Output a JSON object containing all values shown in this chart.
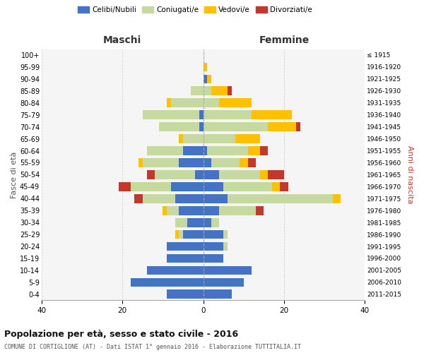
{
  "age_groups": [
    "100+",
    "95-99",
    "90-94",
    "85-89",
    "80-84",
    "75-79",
    "70-74",
    "65-69",
    "60-64",
    "55-59",
    "50-54",
    "45-49",
    "40-44",
    "35-39",
    "30-34",
    "25-29",
    "20-24",
    "15-19",
    "10-14",
    "5-9",
    "0-4"
  ],
  "birth_years": [
    "≤ 1915",
    "1916-1920",
    "1921-1925",
    "1926-1930",
    "1931-1935",
    "1936-1940",
    "1941-1945",
    "1946-1950",
    "1951-1955",
    "1956-1960",
    "1961-1965",
    "1966-1970",
    "1971-1975",
    "1976-1980",
    "1981-1985",
    "1986-1990",
    "1991-1995",
    "1996-2000",
    "2001-2005",
    "2006-2010",
    "2011-2015"
  ],
  "maschi": {
    "celibi": [
      0,
      0,
      0,
      0,
      0,
      1,
      1,
      0,
      5,
      6,
      2,
      8,
      7,
      6,
      4,
      5,
      9,
      9,
      14,
      18,
      9
    ],
    "coniugati": [
      0,
      0,
      0,
      3,
      8,
      14,
      10,
      5,
      9,
      9,
      10,
      10,
      8,
      3,
      3,
      1,
      0,
      0,
      0,
      0,
      0
    ],
    "vedovi": [
      0,
      0,
      0,
      0,
      1,
      0,
      0,
      1,
      0,
      1,
      0,
      0,
      0,
      1,
      0,
      1,
      0,
      0,
      0,
      0,
      0
    ],
    "divorziati": [
      0,
      0,
      0,
      0,
      0,
      0,
      0,
      0,
      0,
      0,
      2,
      3,
      2,
      0,
      0,
      0,
      0,
      0,
      0,
      0,
      0
    ]
  },
  "femmine": {
    "nubili": [
      0,
      0,
      1,
      0,
      0,
      0,
      0,
      0,
      1,
      2,
      4,
      5,
      6,
      4,
      2,
      5,
      5,
      5,
      12,
      10,
      7
    ],
    "coniugate": [
      0,
      0,
      0,
      2,
      4,
      12,
      16,
      8,
      10,
      7,
      10,
      12,
      26,
      9,
      2,
      1,
      1,
      0,
      0,
      0,
      0
    ],
    "vedove": [
      0,
      1,
      1,
      4,
      8,
      10,
      7,
      6,
      3,
      2,
      2,
      2,
      2,
      0,
      0,
      0,
      0,
      0,
      0,
      0,
      0
    ],
    "divorziate": [
      0,
      0,
      0,
      1,
      0,
      0,
      1,
      0,
      2,
      2,
      4,
      2,
      0,
      2,
      0,
      0,
      0,
      0,
      0,
      0,
      0
    ]
  },
  "colors": {
    "celibi": "#4472c4",
    "coniugati": "#c5d9a0",
    "vedovi": "#ffc000",
    "divorziati": "#c0392b"
  },
  "title": "Popolazione per età, sesso e stato civile - 2016",
  "subtitle": "COMUNE DI CORTIGLIONE (AT) - Dati ISTAT 1° gennaio 2016 - Elaborazione TUTTITALIA.IT",
  "xlabel_left": "Maschi",
  "xlabel_right": "Femmine",
  "ylabel_left": "Fasce di età",
  "ylabel_right": "Anni di nascita",
  "xlim": 40,
  "background_color": "#f5f5f5",
  "grid_color": "#cccccc"
}
